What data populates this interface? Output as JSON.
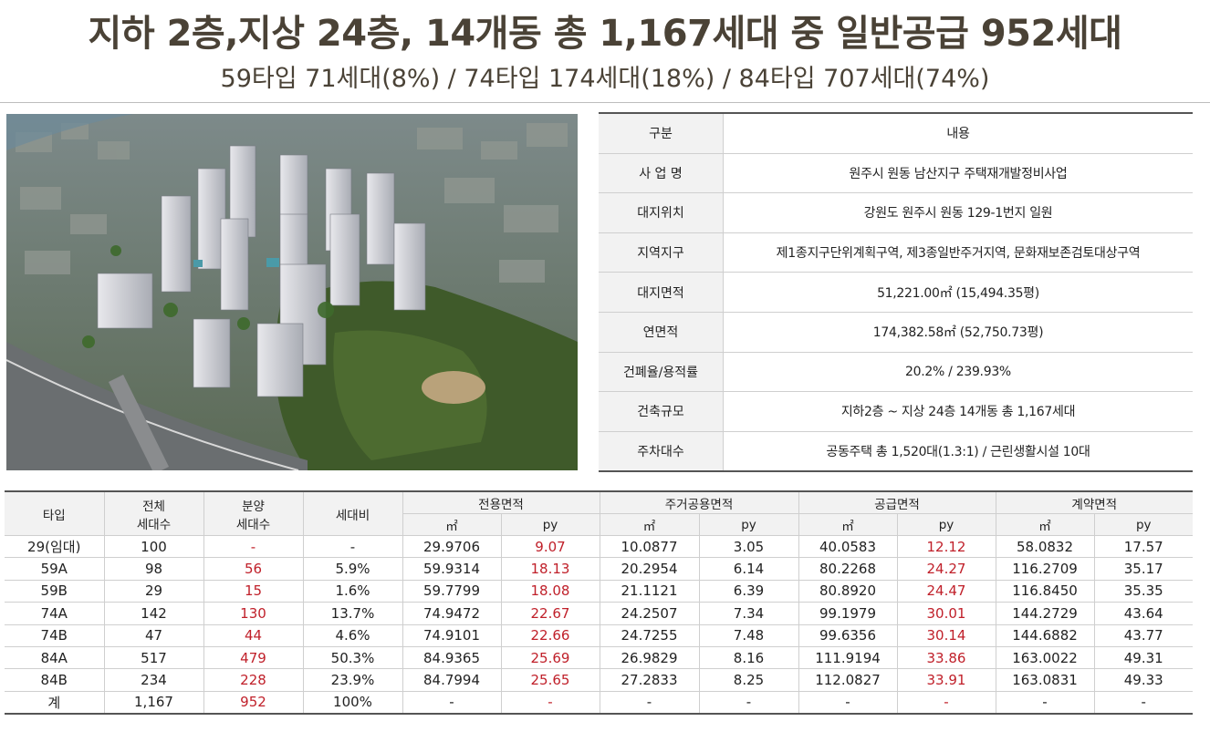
{
  "headline": "지하 2층,지상 24층, 14개동 총 1,167세대 중 일반공급 952세대",
  "subline": "59타입 71세대(8%) / 74타입 174세대(18%) / 84타입 707세대(74%)",
  "info_table": {
    "header": {
      "key": "구분",
      "value": "내용"
    },
    "rows": [
      {
        "key": "사 업 명",
        "value": "원주시 원동 남산지구 주택재개발정비사업"
      },
      {
        "key": "대지위치",
        "value": "강원도 원주시 원동 129-1번지 일원"
      },
      {
        "key": "지역지구",
        "value": "제1종지구단위계획구역, 제3종일반주거지역, 문화재보존검토대상구역"
      },
      {
        "key": "대지면적",
        "value": "51,221.00㎡ (15,494.35평)"
      },
      {
        "key": "연면적",
        "value": "174,382.58㎡ (52,750.73평)"
      },
      {
        "key": "건폐율/용적률",
        "value": "20.2% / 239.93%"
      },
      {
        "key": "건축규모",
        "value": "지하2층 ~ 지상 24층 14개동 총 1,167세대"
      },
      {
        "key": "주차대수",
        "value": "공동주택 총 1,520대(1.3:1) / 근린생활시설 10대"
      }
    ]
  },
  "unit_table": {
    "headers": {
      "type": "타입",
      "total_1": "전체",
      "total_2": "세대수",
      "sale_1": "분양",
      "sale_2": "세대수",
      "ratio": "세대비",
      "exclusive": "전용면적",
      "common": "주거공용면적",
      "supply": "공급면적",
      "contract": "계약면적",
      "sqm": "㎡",
      "py": "py"
    },
    "rows": [
      {
        "type": "29(임대)",
        "total": "100",
        "sale": "-",
        "ratio": "-",
        "ex_sqm": "29.9706",
        "ex_py": "9.07",
        "co_sqm": "10.0877",
        "co_py": "3.05",
        "su_sqm": "40.0583",
        "su_py": "12.12",
        "ct_sqm": "58.0832",
        "ct_py": "17.57"
      },
      {
        "type": "59A",
        "total": "98",
        "sale": "56",
        "ratio": "5.9%",
        "ex_sqm": "59.9314",
        "ex_py": "18.13",
        "co_sqm": "20.2954",
        "co_py": "6.14",
        "su_sqm": "80.2268",
        "su_py": "24.27",
        "ct_sqm": "116.2709",
        "ct_py": "35.17"
      },
      {
        "type": "59B",
        "total": "29",
        "sale": "15",
        "ratio": "1.6%",
        "ex_sqm": "59.7799",
        "ex_py": "18.08",
        "co_sqm": "21.1121",
        "co_py": "6.39",
        "su_sqm": "80.8920",
        "su_py": "24.47",
        "ct_sqm": "116.8450",
        "ct_py": "35.35"
      },
      {
        "type": "74A",
        "total": "142",
        "sale": "130",
        "ratio": "13.7%",
        "ex_sqm": "74.9472",
        "ex_py": "22.67",
        "co_sqm": "24.2507",
        "co_py": "7.34",
        "su_sqm": "99.1979",
        "su_py": "30.01",
        "ct_sqm": "144.2729",
        "ct_py": "43.64"
      },
      {
        "type": "74B",
        "total": "47",
        "sale": "44",
        "ratio": "4.6%",
        "ex_sqm": "74.9101",
        "ex_py": "22.66",
        "co_sqm": "24.7255",
        "co_py": "7.48",
        "su_sqm": "99.6356",
        "su_py": "30.14",
        "ct_sqm": "144.6882",
        "ct_py": "43.77"
      },
      {
        "type": "84A",
        "total": "517",
        "sale": "479",
        "ratio": "50.3%",
        "ex_sqm": "84.9365",
        "ex_py": "25.69",
        "co_sqm": "26.9829",
        "co_py": "8.16",
        "su_sqm": "111.9194",
        "su_py": "33.86",
        "ct_sqm": "163.0022",
        "ct_py": "49.31"
      },
      {
        "type": "84B",
        "total": "234",
        "sale": "228",
        "ratio": "23.9%",
        "ex_sqm": "84.7994",
        "ex_py": "25.65",
        "co_sqm": "27.2833",
        "co_py": "8.25",
        "su_sqm": "112.0827",
        "su_py": "33.91",
        "ct_sqm": "163.0831",
        "ct_py": "49.33"
      },
      {
        "type": "계",
        "total": "1,167",
        "sale": "952",
        "ratio": "100%",
        "ex_sqm": "-",
        "ex_py": "-",
        "co_sqm": "-",
        "co_py": "-",
        "su_sqm": "-",
        "su_py": "-",
        "ct_sqm": "-",
        "ct_py": "-"
      }
    ]
  },
  "colors": {
    "headline": "#4a4236",
    "accent_red": "#c0202a",
    "header_bg": "#f2f2f2"
  }
}
